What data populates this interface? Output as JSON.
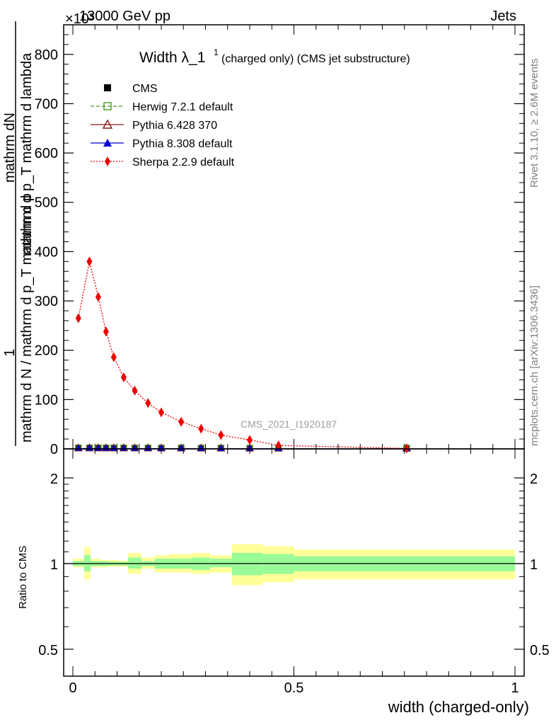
{
  "header": {
    "left": "13000 GeV pp",
    "right": "Jets",
    "exponent": "×10³"
  },
  "side_labels": {
    "rivet": "Rivet 3.1.10, ≥ 2.6M events",
    "mcplots": "mcplots.cern.ch [arXiv:1306.3436]"
  },
  "watermark": "CMS_2021_I1920187",
  "chart_data": [
    {
      "type": "line",
      "title_main": "Width λ_1",
      "title_sup": "1",
      "title_rest": "(charged only) (CMS jet substructure)",
      "ylabel_num": "mathrm dN",
      "ylabel_den": "mathrm d p_T mathrm d lambda",
      "ylabel_den_sub": "T",
      "ylabel_prefix_num": "1",
      "ylabel_prefix_den": "mathrm d N / mathrm d p_T mathrm d p",
      "xlim": [
        0,
        1
      ],
      "ylim": [
        0,
        860
      ],
      "yticks": [
        0,
        100,
        200,
        300,
        400,
        500,
        600,
        700,
        800
      ],
      "legend_position": "top-left",
      "series": [
        {
          "name": "CMS",
          "color": "#000000",
          "marker": "square-filled",
          "x": [
            0.0125,
            0.0375,
            0.0575,
            0.075,
            0.0925,
            0.115,
            0.14,
            0.17,
            0.2,
            0.245,
            0.29,
            0.335,
            0.4,
            0.465,
            0.755
          ],
          "y": [
            0.5,
            0.6,
            0.6,
            0.5,
            0.5,
            0.5,
            0.4,
            0.4,
            0.3,
            0.3,
            0.2,
            0.2,
            0.1,
            0.05,
            0.01
          ]
        },
        {
          "name": "Herwig 7.2.1 default",
          "color": "#4a9a1e",
          "marker": "square-open",
          "line": "dashed",
          "x": [
            0.0125,
            0.0375,
            0.0575,
            0.075,
            0.0925,
            0.115,
            0.14,
            0.17,
            0.2,
            0.245,
            0.29,
            0.335,
            0.4,
            0.465,
            0.755
          ],
          "y": [
            0.5,
            0.6,
            0.6,
            0.5,
            0.5,
            0.5,
            0.4,
            0.4,
            0.3,
            0.3,
            0.2,
            0.2,
            0.1,
            0.05,
            0.01
          ]
        },
        {
          "name": "Pythia 6.428 370",
          "color": "#8b1a1a",
          "marker": "triangle-open",
          "line": "solid",
          "x": [
            0.0125,
            0.0375,
            0.0575,
            0.075,
            0.0925,
            0.115,
            0.14,
            0.17,
            0.2,
            0.245,
            0.29,
            0.335,
            0.4,
            0.465,
            0.755
          ],
          "y": [
            0.5,
            0.6,
            0.6,
            0.5,
            0.5,
            0.5,
            0.4,
            0.4,
            0.3,
            0.3,
            0.2,
            0.2,
            0.1,
            0.05,
            0.01
          ]
        },
        {
          "name": "Pythia 8.308 default",
          "color": "#0000cc",
          "marker": "triangle-filled",
          "line": "solid",
          "x": [
            0.0125,
            0.0375,
            0.0575,
            0.075,
            0.0925,
            0.115,
            0.14,
            0.17,
            0.2,
            0.245,
            0.29,
            0.335,
            0.4,
            0.465,
            0.755
          ],
          "y": [
            0.5,
            0.6,
            0.6,
            0.5,
            0.5,
            0.5,
            0.4,
            0.4,
            0.3,
            0.3,
            0.2,
            0.2,
            0.1,
            0.05,
            0.01
          ]
        },
        {
          "name": "Sherpa 2.2.9 default",
          "color": "#ee0000",
          "marker": "diamond-filled",
          "line": "dotted",
          "x": [
            0.0125,
            0.0375,
            0.0575,
            0.075,
            0.0925,
            0.115,
            0.14,
            0.17,
            0.2,
            0.245,
            0.29,
            0.335,
            0.4,
            0.465,
            0.755
          ],
          "y": [
            265,
            380,
            308,
            238,
            186,
            145,
            118,
            93,
            74,
            55,
            41,
            28,
            18,
            7,
            1
          ]
        }
      ]
    },
    {
      "type": "area",
      "ylabel": "Ratio to CMS",
      "xlabel": "width (charged-only)",
      "xlim": [
        0,
        1
      ],
      "ylim": [
        0.4,
        2.3
      ],
      "log_scale_y": true,
      "xticks": [
        0,
        0.5,
        1
      ],
      "xtick_labels": [
        "0",
        "0.5",
        "1"
      ],
      "yticks": [
        0.5,
        1,
        2
      ],
      "ytick_labels": [
        "0.5",
        "1",
        "2"
      ],
      "reference_line": 1,
      "inner_band_color": "#98fb98",
      "outer_band_color": "#ffff99",
      "bins": [
        {
          "x0": 0.0,
          "x1": 0.025,
          "inner": [
            0.98,
            1.02
          ],
          "outer": [
            0.97,
            1.04
          ]
        },
        {
          "x0": 0.025,
          "x1": 0.04,
          "inner": [
            0.94,
            1.07
          ],
          "outer": [
            0.88,
            1.14
          ]
        },
        {
          "x0": 0.04,
          "x1": 0.06,
          "inner": [
            0.98,
            1.02
          ],
          "outer": [
            0.97,
            1.04
          ]
        },
        {
          "x0": 0.06,
          "x1": 0.08,
          "inner": [
            0.98,
            1.02
          ],
          "outer": [
            0.97,
            1.03
          ]
        },
        {
          "x0": 0.08,
          "x1": 0.1,
          "inner": [
            0.985,
            1.015
          ],
          "outer": [
            0.975,
            1.03
          ]
        },
        {
          "x0": 0.1,
          "x1": 0.125,
          "inner": [
            0.985,
            1.015
          ],
          "outer": [
            0.975,
            1.025
          ]
        },
        {
          "x0": 0.125,
          "x1": 0.155,
          "inner": [
            0.96,
            1.05
          ],
          "outer": [
            0.92,
            1.09
          ]
        },
        {
          "x0": 0.155,
          "x1": 0.185,
          "inner": [
            0.98,
            1.02
          ],
          "outer": [
            0.96,
            1.05
          ]
        },
        {
          "x0": 0.185,
          "x1": 0.22,
          "inner": [
            0.96,
            1.04
          ],
          "outer": [
            0.93,
            1.07
          ]
        },
        {
          "x0": 0.22,
          "x1": 0.27,
          "inner": [
            0.96,
            1.04
          ],
          "outer": [
            0.93,
            1.08
          ]
        },
        {
          "x0": 0.27,
          "x1": 0.31,
          "inner": [
            0.95,
            1.05
          ],
          "outer": [
            0.92,
            1.09
          ]
        },
        {
          "x0": 0.31,
          "x1": 0.36,
          "inner": [
            0.97,
            1.04
          ],
          "outer": [
            0.93,
            1.07
          ]
        },
        {
          "x0": 0.36,
          "x1": 0.43,
          "inner": [
            0.91,
            1.09
          ],
          "outer": [
            0.84,
            1.17
          ]
        },
        {
          "x0": 0.43,
          "x1": 0.5,
          "inner": [
            0.92,
            1.08
          ],
          "outer": [
            0.86,
            1.15
          ]
        },
        {
          "x0": 0.5,
          "x1": 1.0,
          "inner": [
            0.94,
            1.06
          ],
          "outer": [
            0.88,
            1.12
          ]
        }
      ]
    }
  ]
}
